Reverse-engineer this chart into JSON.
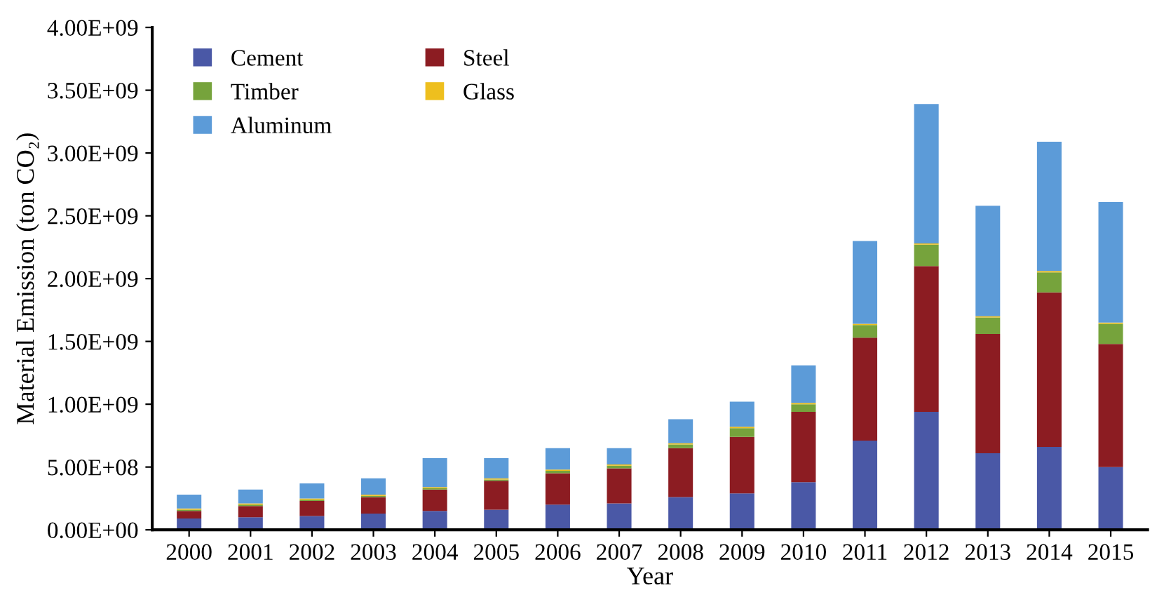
{
  "chart_data": {
    "type": "bar",
    "stacked": true,
    "xlabel": "Year",
    "ylabel": "Material Emission (ton CO₂)",
    "categories": [
      "2000",
      "2001",
      "2002",
      "2003",
      "2004",
      "2005",
      "2006",
      "2007",
      "2008",
      "2009",
      "2010",
      "2011",
      "2012",
      "2013",
      "2014",
      "2015"
    ],
    "series": [
      {
        "name": "Cement",
        "color": "#4a58a6",
        "values": [
          90000000,
          100000000,
          110000000,
          130000000,
          150000000,
          160000000,
          200000000,
          210000000,
          260000000,
          290000000,
          380000000,
          710000000,
          940000000,
          610000000,
          660000000,
          500000000
        ]
      },
      {
        "name": "Steel",
        "color": "#8c1c22",
        "values": [
          60000000,
          90000000,
          120000000,
          130000000,
          170000000,
          230000000,
          250000000,
          280000000,
          390000000,
          450000000,
          560000000,
          820000000,
          1160000000,
          950000000,
          1230000000,
          980000000
        ]
      },
      {
        "name": "Timber",
        "color": "#76a33c",
        "values": [
          10000000,
          10000000,
          10000000,
          10000000,
          10000000,
          10000000,
          20000000,
          20000000,
          30000000,
          70000000,
          60000000,
          100000000,
          170000000,
          130000000,
          160000000,
          160000000
        ]
      },
      {
        "name": "Glass",
        "color": "#eebf1e",
        "values": [
          10000000,
          10000000,
          10000000,
          10000000,
          10000000,
          10000000,
          10000000,
          10000000,
          10000000,
          10000000,
          10000000,
          10000000,
          10000000,
          10000000,
          10000000,
          10000000
        ]
      },
      {
        "name": "Aluminum",
        "color": "#5c9bd8",
        "values": [
          110000000,
          110000000,
          120000000,
          130000000,
          230000000,
          160000000,
          170000000,
          130000000,
          190000000,
          200000000,
          300000000,
          660000000,
          1110000000,
          880000000,
          1030000000,
          960000000
        ]
      }
    ],
    "ylim": [
      0,
      4000000000
    ],
    "yticks": [
      {
        "value": 0,
        "label": "0.00E+00"
      },
      {
        "value": 500000000,
        "label": "5.00E+08"
      },
      {
        "value": 1000000000,
        "label": "1.00E+09"
      },
      {
        "value": 1500000000,
        "label": "1.50E+09"
      },
      {
        "value": 2000000000,
        "label": "2.00E+09"
      },
      {
        "value": 2500000000,
        "label": "2.50E+09"
      },
      {
        "value": 3000000000,
        "label": "3.00E+09"
      },
      {
        "value": 3500000000,
        "label": "3.50E+09"
      },
      {
        "value": 4000000000,
        "label": "4.00E+09"
      }
    ],
    "legend": "top left",
    "grid": false
  }
}
